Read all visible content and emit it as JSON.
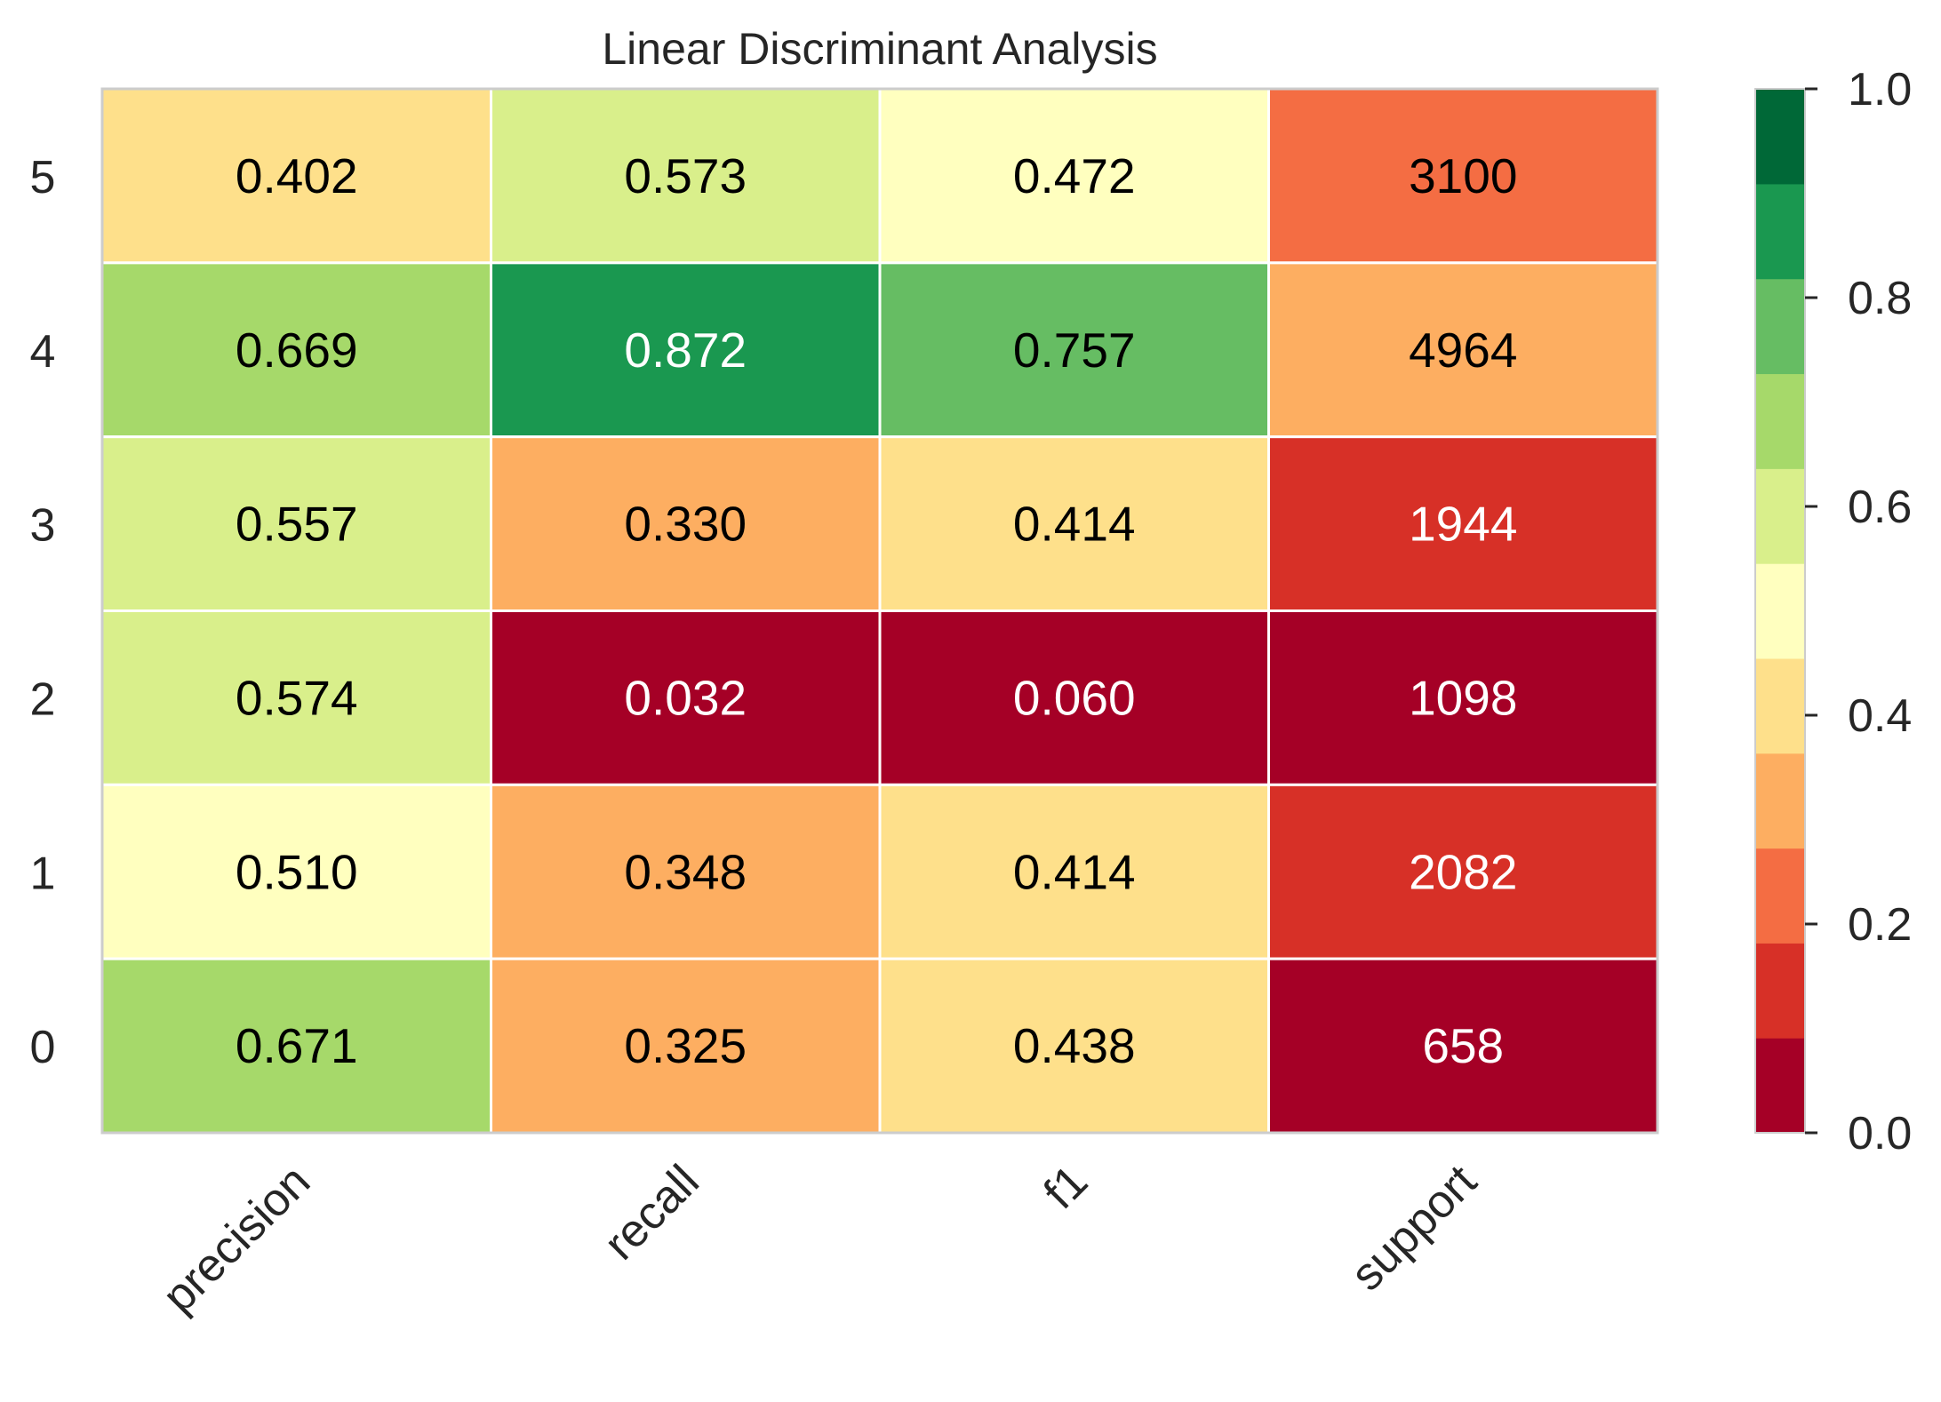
{
  "chart_data": {
    "type": "heatmap",
    "title": "Linear Discriminant Analysis",
    "xlabel": "",
    "ylabel": "",
    "columns": [
      "precision",
      "recall",
      "f1",
      "support"
    ],
    "rows": [
      "5",
      "4",
      "3",
      "2",
      "1",
      "0"
    ],
    "cells": [
      [
        0.402,
        0.573,
        0.472,
        3100
      ],
      [
        0.669,
        0.872,
        0.757,
        4964
      ],
      [
        0.557,
        0.33,
        0.414,
        1944
      ],
      [
        0.574,
        0.032,
        0.06,
        1098
      ],
      [
        0.51,
        0.348,
        0.414,
        2082
      ],
      [
        0.671,
        0.325,
        0.438,
        658
      ]
    ],
    "cell_labels": [
      [
        "0.402",
        "0.573",
        "0.472",
        "3100"
      ],
      [
        "0.669",
        "0.872",
        "0.757",
        "4964"
      ],
      [
        "0.557",
        "0.330",
        "0.414",
        "1944"
      ],
      [
        "0.574",
        "0.032",
        "0.060",
        "1098"
      ],
      [
        "0.510",
        "0.348",
        "0.414",
        "2082"
      ],
      [
        "0.671",
        "0.325",
        "0.438",
        "658"
      ]
    ],
    "support_scale": "percent of total support",
    "colorbar": {
      "range": [
        0.0,
        1.0
      ],
      "ticks": [
        "0.0",
        "0.2",
        "0.4",
        "0.6",
        "0.8",
        "1.0"
      ],
      "colors": [
        "#a50026",
        "#d73027",
        "#f46d43",
        "#fdae61",
        "#fee08b",
        "#ffffbf",
        "#d9ef8b",
        "#a6d96a",
        "#66bd63",
        "#1a9850",
        "#006837"
      ]
    },
    "grid": false,
    "legend": "none"
  }
}
